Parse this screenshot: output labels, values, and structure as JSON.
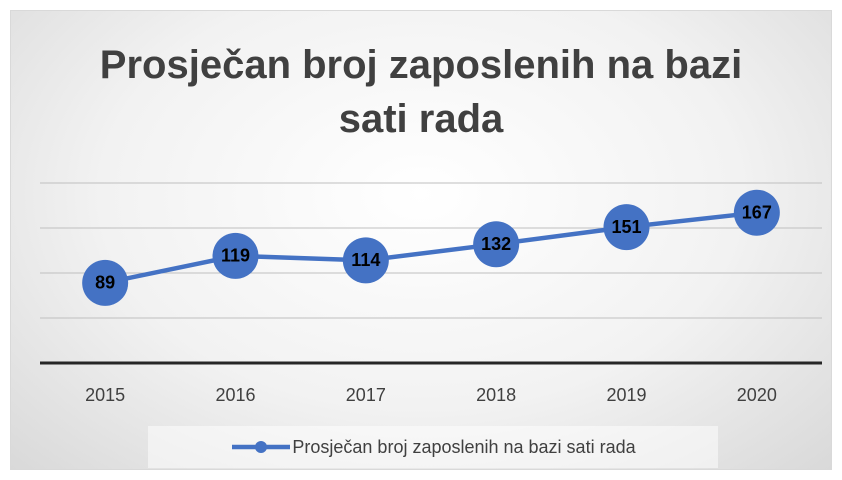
{
  "chart_data": {
    "type": "line",
    "title": "Prosječan broj zaposlenih na bazi sati rada",
    "categories": [
      "2015",
      "2016",
      "2017",
      "2018",
      "2019",
      "2020"
    ],
    "series": [
      {
        "name": "Prosječan broj zaposlenih na bazi sati rada",
        "color": "#4472c4",
        "values": [
          89,
          119,
          114,
          132,
          151,
          167
        ]
      }
    ],
    "ylim": [
      0,
      200
    ],
    "yticks": [
      0,
      50,
      100,
      150,
      200
    ],
    "grid": true,
    "legend": "bottom"
  }
}
